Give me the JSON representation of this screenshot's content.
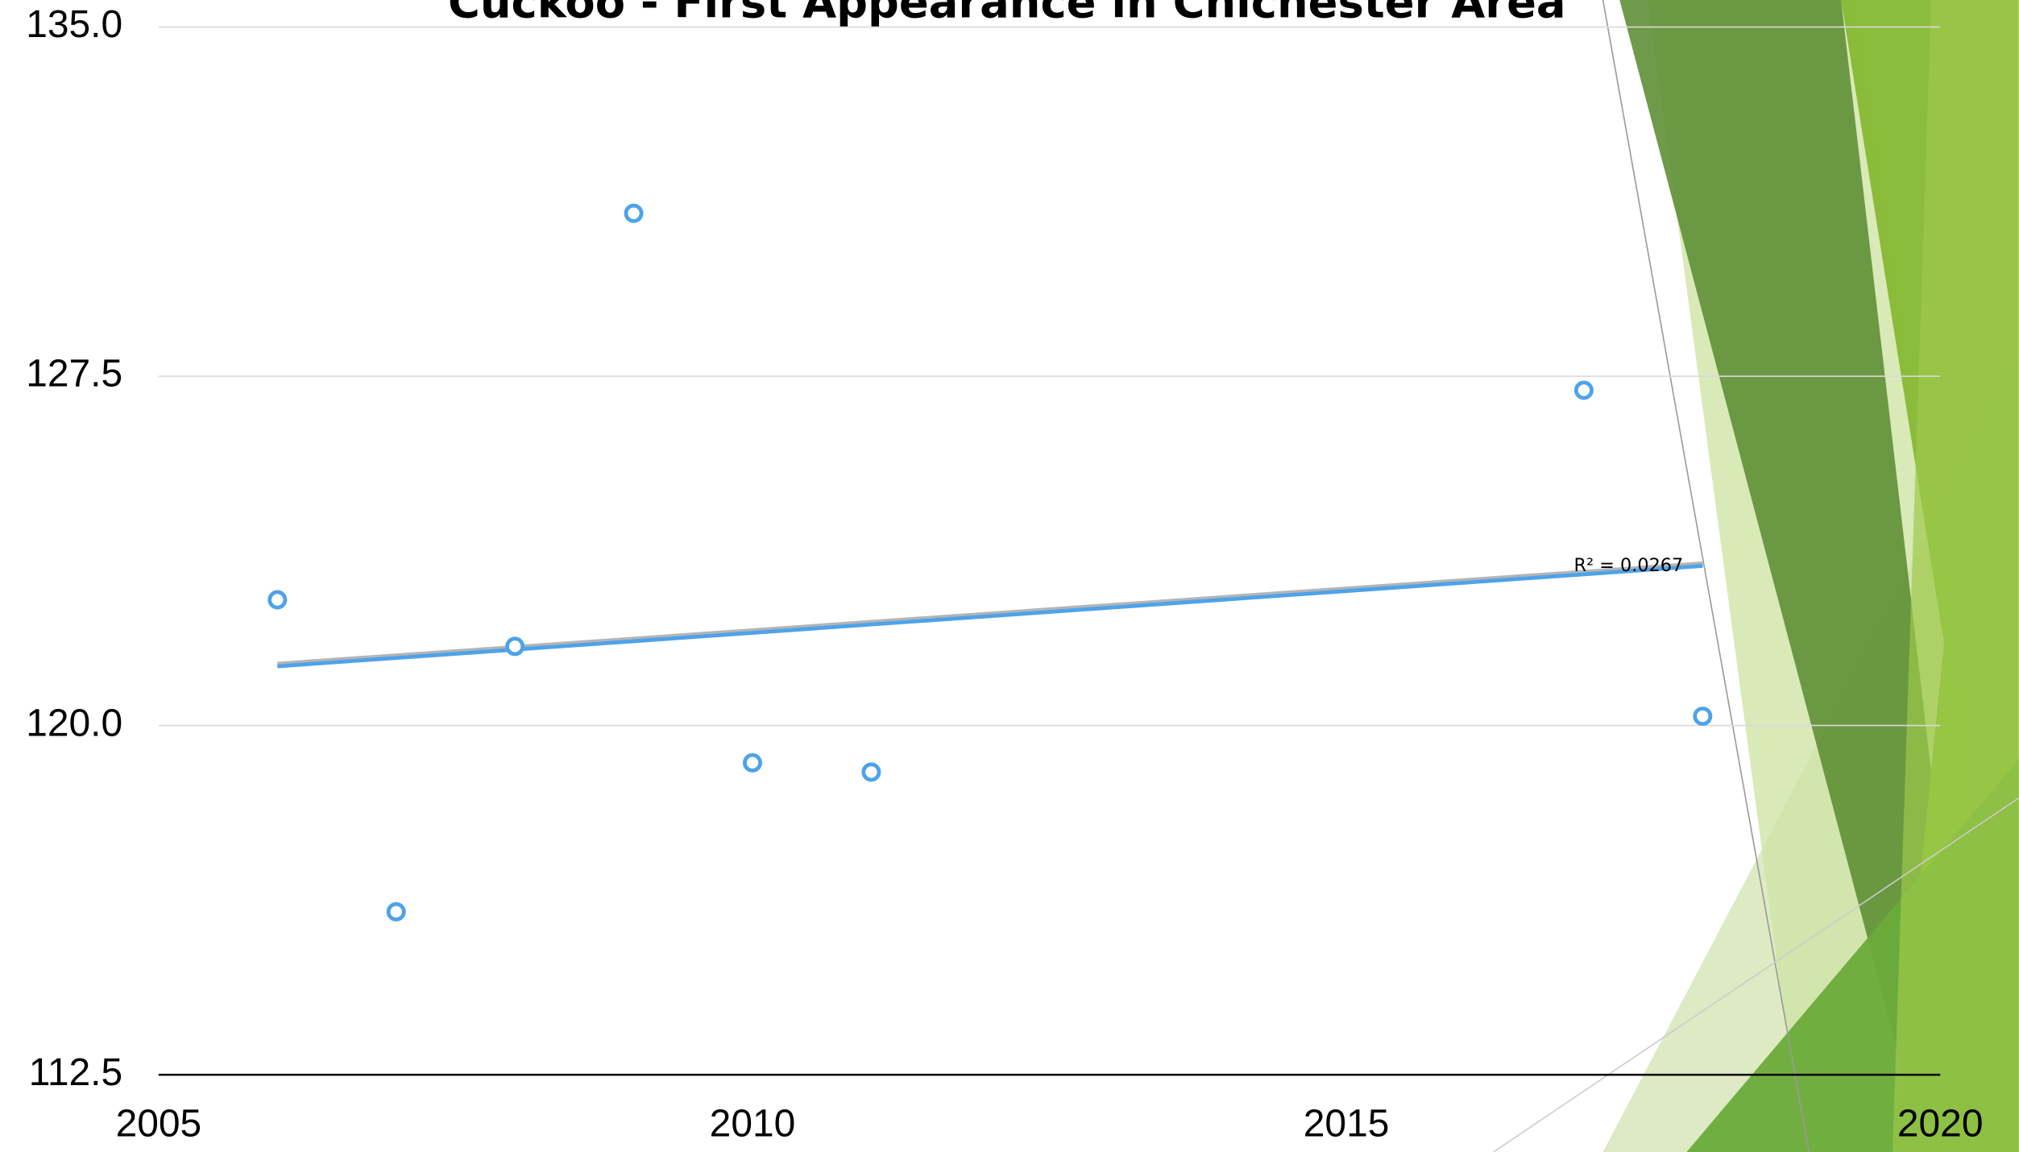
{
  "chart_data": {
    "type": "scatter",
    "title": "Cuckoo - First Appearance in Chichester Area",
    "x": [
      2006,
      2007,
      2008,
      2009,
      2010,
      2011,
      2017,
      2018
    ],
    "values": [
      122.7,
      116.0,
      121.7,
      131.0,
      119.2,
      119.0,
      127.2,
      120.2
    ],
    "color": "#4da3ea",
    "xlim": [
      2005,
      2020
    ],
    "xticks": [
      2005,
      2010,
      2015,
      2020
    ],
    "ylim": [
      112.5,
      135
    ],
    "yticks": [
      {
        "value": 112.5,
        "label": "112.5"
      },
      {
        "value": 120,
        "label": "120.0"
      },
      127.5,
      {
        "value": 135,
        "label": "135.0"
      }
    ],
    "grid": true,
    "trendline": "linear",
    "annotation": "R² = 0.0267"
  }
}
